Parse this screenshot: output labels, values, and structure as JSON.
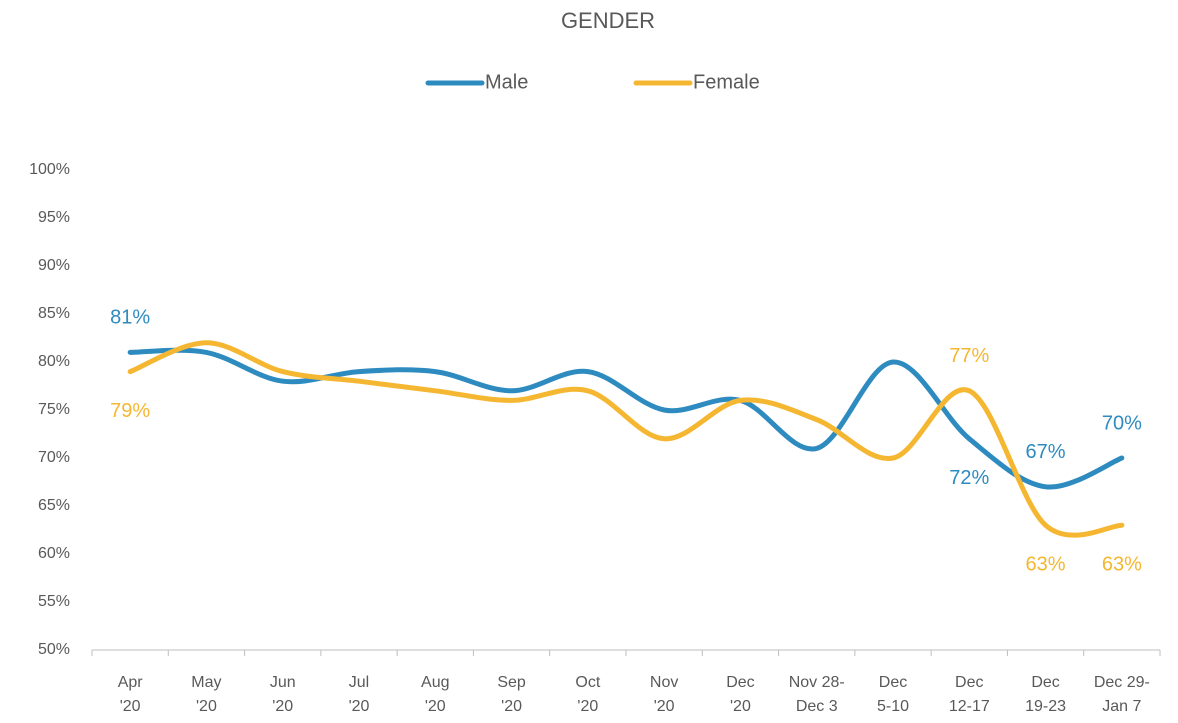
{
  "chart_data": {
    "type": "line",
    "title": "GENDER",
    "categories": [
      [
        "Apr",
        "'20"
      ],
      [
        "May",
        "'20"
      ],
      [
        "Jun",
        "'20"
      ],
      [
        "Jul",
        "'20"
      ],
      [
        "Aug",
        "'20"
      ],
      [
        "Sep",
        "'20"
      ],
      [
        "Oct",
        "'20"
      ],
      [
        "Nov",
        "'20"
      ],
      [
        "Dec",
        "'20"
      ],
      [
        "Nov 28-",
        "Dec 3"
      ],
      [
        "Dec",
        "5-10"
      ],
      [
        "Dec",
        "12-17"
      ],
      [
        "Dec",
        "19-23"
      ],
      [
        "Dec 29-",
        "Jan 7"
      ]
    ],
    "series": [
      {
        "name": "Male",
        "color": "#2e8bc0",
        "values": [
          81,
          81,
          78,
          79,
          79,
          77,
          79,
          75,
          76,
          71,
          80,
          72,
          67,
          70
        ],
        "value_labels": [
          "81%",
          null,
          null,
          null,
          null,
          null,
          null,
          null,
          null,
          null,
          null,
          "72%",
          "67%",
          "70%"
        ]
      },
      {
        "name": "Female",
        "color": "#f5b731",
        "values": [
          79,
          82,
          79,
          78,
          77,
          76,
          77,
          72,
          76,
          74,
          70,
          77,
          63,
          63
        ],
        "value_labels": [
          "79%",
          null,
          null,
          null,
          null,
          null,
          null,
          null,
          null,
          null,
          null,
          "77%",
          "63%",
          "63%"
        ]
      }
    ],
    "ylim": [
      50,
      100
    ],
    "yticks": [
      {
        "value": 50,
        "label": "50%"
      },
      {
        "value": 55,
        "label": "55%"
      },
      {
        "value": 60,
        "label": "60%"
      },
      {
        "value": 65,
        "label": "65%"
      },
      {
        "value": 70,
        "label": "70%"
      },
      {
        "value": 75,
        "label": "75%"
      },
      {
        "value": 80,
        "label": "80%"
      },
      {
        "value": 85,
        "label": "85%"
      },
      {
        "value": 90,
        "label": "90%"
      },
      {
        "value": 95,
        "label": "95%"
      },
      {
        "value": 100,
        "label": "100%"
      }
    ],
    "legend": "top",
    "grid": false
  }
}
